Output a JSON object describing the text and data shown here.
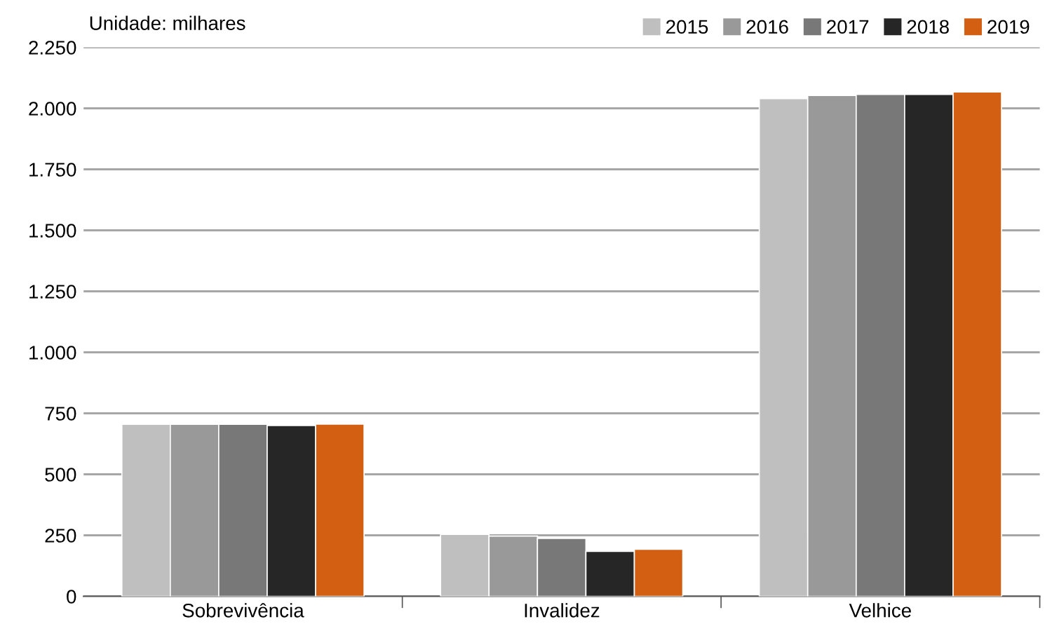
{
  "chart_data": {
    "type": "bar",
    "categories": [
      "Sobrevivência",
      "Invalidez",
      "Velhice"
    ],
    "series": [
      {
        "name": "2015",
        "color": "#bfbfbf",
        "values": [
          705,
          254,
          2040
        ]
      },
      {
        "name": "2016",
        "color": "#999999",
        "values": [
          705,
          247,
          2053
        ]
      },
      {
        "name": "2017",
        "color": "#787878",
        "values": [
          705,
          237,
          2057
        ]
      },
      {
        "name": "2018",
        "color": "#262626",
        "values": [
          700,
          184,
          2057
        ]
      },
      {
        "name": "2019",
        "color": "#d35f12",
        "values": [
          706,
          193,
          2067
        ]
      }
    ],
    "ylim": [
      0,
      2250
    ],
    "yticks": [
      0,
      250,
      500,
      750,
      {
        "value": 1000,
        "label": "1.000"
      },
      {
        "value": 1250,
        "label": "1.250"
      },
      {
        "value": 1500,
        "label": "1.500"
      },
      {
        "value": 1750,
        "label": "1.750"
      },
      {
        "value": 2000,
        "label": "2.000"
      },
      {
        "value": 2250,
        "label": "2.250"
      }
    ],
    "grid": "y",
    "legend": "top right",
    "annotations": [
      "Unidade: milhares"
    ]
  }
}
